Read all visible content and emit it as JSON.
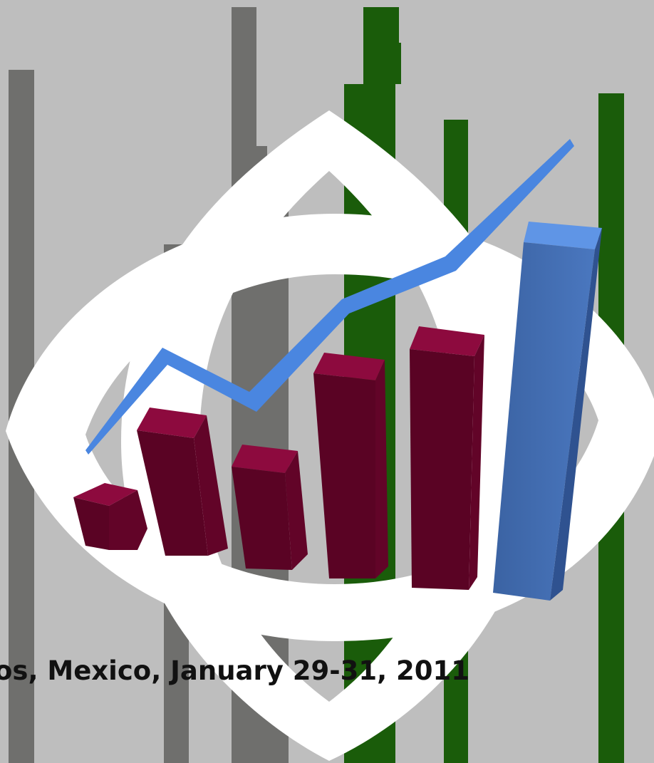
{
  "caption": {
    "text": "os, Mexico, January 29-31, 2011"
  },
  "colors": {
    "background": "#bebebe",
    "grey_strip": "#6f6f6d",
    "green_strip": "#1a5c0a",
    "ring": "#ffffff",
    "bar_maroon": "#620428",
    "bar_maroon_top": "#8d0a3e",
    "bar_blue": "#3e66a8",
    "bar_blue_top": "#5f95e6",
    "trend_line": "#4a86e0",
    "caption_text": "#111111"
  },
  "icons": {
    "logo": "rising-bar-chart-with-trend-line-icon"
  }
}
